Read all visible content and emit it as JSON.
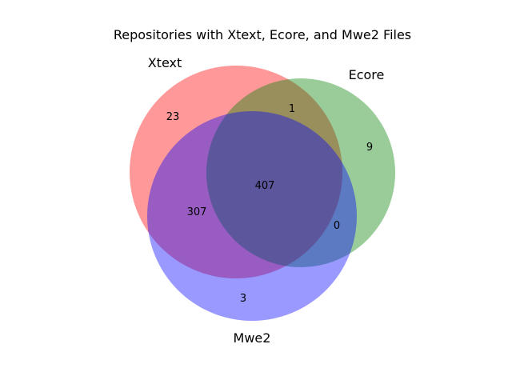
{
  "figure": {
    "title": "Repositories with Xtext, Ecore, and Mwe2 Files"
  },
  "sets": {
    "a": {
      "label": "Xtext",
      "color": "#ff0000"
    },
    "b": {
      "label": "Ecore",
      "color": "#008000"
    },
    "c": {
      "label": "Mwe2",
      "color": "#0000ff"
    }
  },
  "regions": {
    "a_only": "23",
    "b_only": "9",
    "c_only": "3",
    "ab_only": "1",
    "ac_only": "307",
    "bc_only": "0",
    "abc": "407"
  },
  "chart_data": {
    "type": "venn",
    "title": "Repositories with Xtext, Ecore, and Mwe2 Files",
    "sets": [
      "Xtext",
      "Ecore",
      "Mwe2"
    ],
    "subsets": [
      {
        "sets": [
          "Xtext"
        ],
        "value": 23
      },
      {
        "sets": [
          "Ecore"
        ],
        "value": 9
      },
      {
        "sets": [
          "Mwe2"
        ],
        "value": 3
      },
      {
        "sets": [
          "Xtext",
          "Ecore"
        ],
        "value": 1
      },
      {
        "sets": [
          "Xtext",
          "Mwe2"
        ],
        "value": 307
      },
      {
        "sets": [
          "Ecore",
          "Mwe2"
        ],
        "value": 0
      },
      {
        "sets": [
          "Xtext",
          "Ecore",
          "Mwe2"
        ],
        "value": 407
      }
    ]
  }
}
